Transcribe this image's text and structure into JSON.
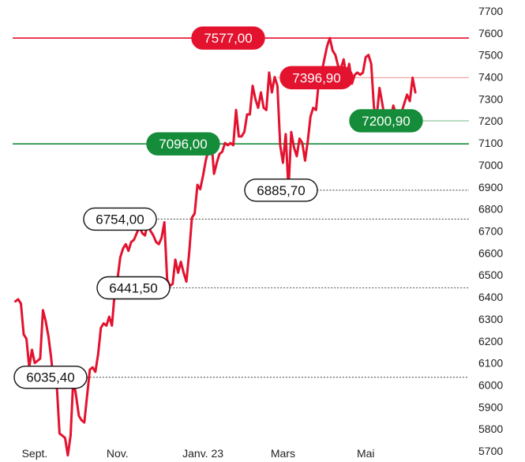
{
  "chart_data": {
    "type": "line",
    "title": "",
    "xlabel": "",
    "ylabel": "",
    "ylim": [
      5650,
      7750
    ],
    "y_ticks": [
      5700,
      5800,
      5900,
      6000,
      6100,
      6200,
      6300,
      6400,
      6500,
      6600,
      6700,
      6800,
      6900,
      7000,
      7100,
      7200,
      7300,
      7400,
      7500,
      7600,
      7700
    ],
    "y_tick_labels": [
      "5700",
      "5800",
      "5900",
      "6000",
      "6100",
      "6200",
      "6300",
      "6400",
      "6500",
      "6600",
      "6700",
      "6800",
      "6900",
      "7000",
      "7100",
      "7200",
      "7300",
      "7400",
      "7500",
      "7600",
      "7700"
    ],
    "x_ticks": [
      {
        "x": 0,
        "label": "Sept."
      },
      {
        "x": 30,
        "label": "Nov."
      },
      {
        "x": 61,
        "label": "Janv. 23"
      },
      {
        "x": 90,
        "label": "Mars"
      },
      {
        "x": 120,
        "label": "Mai"
      }
    ],
    "x_range": [
      -8,
      158
    ],
    "grid": false,
    "line_color": "#e3122e",
    "series": [
      {
        "values": [
          [
            -7,
            6380
          ],
          [
            -6,
            6390
          ],
          [
            -5,
            6370
          ],
          [
            -4,
            6230
          ],
          [
            -3,
            6210
          ],
          [
            -2,
            6080
          ],
          [
            -1,
            6160
          ],
          [
            0,
            6100
          ],
          [
            1,
            6110
          ],
          [
            2,
            6120
          ],
          [
            3,
            6340
          ],
          [
            4,
            6290
          ],
          [
            5,
            6220
          ],
          [
            6,
            6120
          ],
          [
            7,
            5990
          ],
          [
            8,
            6000
          ],
          [
            9,
            5780
          ],
          [
            10,
            5770
          ],
          [
            11,
            5760
          ],
          [
            12,
            5680
          ],
          [
            13,
            5770
          ],
          [
            14,
            6030
          ],
          [
            15,
            5950
          ],
          [
            16,
            5860
          ],
          [
            17,
            5840
          ],
          [
            18,
            5830
          ],
          [
            19,
            5950
          ],
          [
            20,
            6070
          ],
          [
            21,
            6080
          ],
          [
            22,
            6060
          ],
          [
            23,
            6140
          ],
          [
            24,
            6260
          ],
          [
            25,
            6280
          ],
          [
            26,
            6270
          ],
          [
            27,
            6310
          ],
          [
            28,
            6270
          ],
          [
            29,
            6420
          ],
          [
            30,
            6480
          ],
          [
            31,
            6580
          ],
          [
            32,
            6620
          ],
          [
            33,
            6640
          ],
          [
            34,
            6610
          ],
          [
            35,
            6650
          ],
          [
            36,
            6660
          ],
          [
            37,
            6690
          ],
          [
            38,
            6720
          ],
          [
            39,
            6690
          ],
          [
            40,
            6680
          ],
          [
            41,
            6740
          ],
          [
            42,
            6700
          ],
          [
            43,
            6680
          ],
          [
            44,
            6650
          ],
          [
            45,
            6640
          ],
          [
            46,
            6670
          ],
          [
            47,
            6740
          ],
          [
            48,
            6480
          ],
          [
            49,
            6450
          ],
          [
            50,
            6460
          ],
          [
            51,
            6570
          ],
          [
            52,
            6510
          ],
          [
            53,
            6560
          ],
          [
            54,
            6510
          ],
          [
            55,
            6470
          ],
          [
            56,
            6600
          ],
          [
            57,
            6760
          ],
          [
            58,
            6780
          ],
          [
            59,
            6910
          ],
          [
            60,
            6890
          ],
          [
            61,
            6950
          ],
          [
            62,
            7020
          ],
          [
            63,
            7070
          ],
          [
            64,
            7120
          ],
          [
            65,
            6960
          ],
          [
            66,
            7010
          ],
          [
            67,
            7050
          ],
          [
            68,
            7060
          ],
          [
            69,
            7100
          ],
          [
            70,
            7090
          ],
          [
            71,
            7100
          ],
          [
            72,
            7090
          ],
          [
            73,
            7250
          ],
          [
            74,
            7130
          ],
          [
            75,
            7130
          ],
          [
            76,
            7150
          ],
          [
            77,
            7230
          ],
          [
            78,
            7230
          ],
          [
            79,
            7360
          ],
          [
            80,
            7300
          ],
          [
            81,
            7260
          ],
          [
            82,
            7330
          ],
          [
            83,
            7260
          ],
          [
            84,
            7250
          ],
          [
            85,
            7420
          ],
          [
            86,
            7330
          ],
          [
            87,
            7400
          ],
          [
            88,
            7360
          ],
          [
            89,
            7090
          ],
          [
            90,
            7010
          ],
          [
            91,
            7140
          ],
          [
            92,
            6885.7
          ],
          [
            93,
            7150
          ],
          [
            94,
            7080
          ],
          [
            95,
            7040
          ],
          [
            96,
            7120
          ],
          [
            97,
            7100
          ],
          [
            98,
            7020
          ],
          [
            99,
            7110
          ],
          [
            100,
            7220
          ],
          [
            101,
            7260
          ],
          [
            102,
            7250
          ],
          [
            103,
            7380
          ],
          [
            104,
            7420
          ],
          [
            105,
            7480
          ],
          [
            106,
            7540
          ],
          [
            107,
            7577
          ],
          [
            108,
            7520
          ],
          [
            109,
            7500
          ],
          [
            110,
            7450
          ],
          [
            111,
            7440
          ],
          [
            112,
            7480
          ],
          [
            113,
            7400
          ],
          [
            114,
            7460
          ],
          [
            115,
            7370
          ],
          [
            116,
            7410
          ],
          [
            117,
            7420
          ],
          [
            118,
            7410
          ],
          [
            119,
            7420
          ],
          [
            120,
            7490
          ],
          [
            121,
            7500
          ],
          [
            122,
            7460
          ],
          [
            123,
            7260
          ],
          [
            124,
            7220
          ],
          [
            125,
            7350
          ],
          [
            126,
            7280
          ],
          [
            127,
            7200.9
          ],
          [
            128,
            7230
          ],
          [
            129,
            7210
          ],
          [
            130,
            7270
          ],
          [
            131,
            7230
          ],
          [
            132,
            7230
          ],
          [
            133,
            7240
          ],
          [
            134,
            7280
          ],
          [
            135,
            7320
          ],
          [
            136,
            7290
          ],
          [
            137,
            7396.9
          ],
          [
            138,
            7330
          ]
        ]
      }
    ],
    "levels": [
      {
        "value": 7577,
        "label": "7577,00",
        "style": "red",
        "x_start": -8
      },
      {
        "value": 7396.9,
        "label": "7396,90",
        "style": "red-light",
        "x_start": 88
      },
      {
        "value": 7200.9,
        "label": "7200,90",
        "style": "green-light",
        "x_start": 127
      },
      {
        "value": 7096,
        "label": "7096,00",
        "style": "green",
        "x_start": -8
      },
      {
        "value": 6885.7,
        "label": "6885,70",
        "style": "dotted",
        "x_start": 92
      },
      {
        "value": 6754,
        "label": "6754,00",
        "style": "dotted",
        "x_start": 40
      },
      {
        "value": 6441.5,
        "label": "6441,50",
        "style": "dotted",
        "x_start": 49
      },
      {
        "value": 6035.4,
        "label": "6035,40",
        "style": "dotted",
        "x_start": 12
      }
    ],
    "colors": {
      "red": "#e3122e",
      "red_light": "#f2a7a7",
      "green": "#158c3a",
      "green_light": "#8fc79d",
      "dotted": "#555555"
    }
  }
}
